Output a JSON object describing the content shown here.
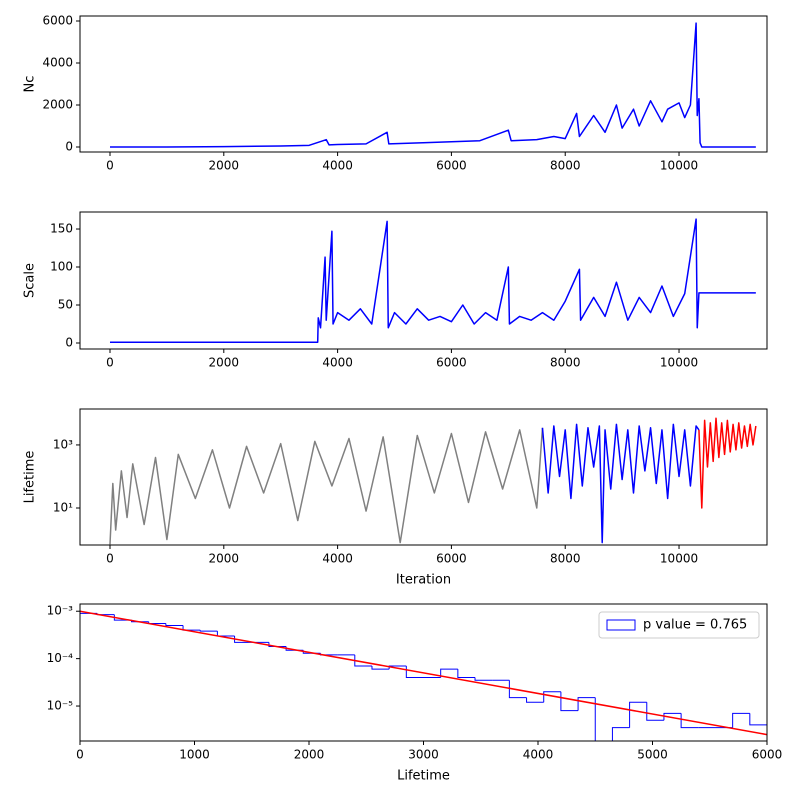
{
  "chart_data": [
    {
      "type": "line",
      "ylabel": "Nc",
      "xlim": [
        -527,
        11546
      ],
      "xticks": [
        0,
        2000,
        4000,
        6000,
        8000,
        10000
      ],
      "ylim": [
        -238,
        6238
      ],
      "yticks": [
        0,
        2000,
        4000,
        6000
      ],
      "series": [
        {
          "color": "#0000ff",
          "x": [
            0,
            1000,
            2000,
            3000,
            3500,
            3800,
            3850,
            4000,
            4500,
            4870,
            4900,
            5500,
            6000,
            6500,
            7000,
            7050,
            7500,
            7800,
            8000,
            8200,
            8250,
            8500,
            8700,
            8900,
            9000,
            9200,
            9300,
            9500,
            9700,
            9800,
            10000,
            10100,
            10200,
            10300,
            10320,
            10350,
            10370,
            10400,
            11350
          ],
          "values": [
            0,
            0,
            20,
            50,
            80,
            350,
            100,
            120,
            150,
            700,
            150,
            200,
            250,
            300,
            800,
            300,
            350,
            500,
            400,
            1600,
            500,
            1500,
            700,
            2000,
            900,
            1800,
            1000,
            2200,
            1200,
            1800,
            2100,
            1400,
            2000,
            5900,
            1500,
            2300,
            200,
            0,
            0
          ]
        }
      ]
    },
    {
      "type": "line",
      "ylabel": "Scale",
      "xlim": [
        -527,
        11546
      ],
      "xticks": [
        0,
        2000,
        4000,
        6000,
        8000,
        10000
      ],
      "ylim": [
        -7.9,
        172.4
      ],
      "yticks": [
        0,
        50,
        100,
        150
      ],
      "series": [
        {
          "color": "#0000ff",
          "x": [
            0,
            3650,
            3660,
            3700,
            3780,
            3800,
            3900,
            3920,
            4000,
            4200,
            4400,
            4600,
            4870,
            4890,
            5000,
            5200,
            5400,
            5600,
            5800,
            6000,
            6200,
            6400,
            6600,
            6800,
            7000,
            7020,
            7200,
            7400,
            7600,
            7800,
            8000,
            8250,
            8270,
            8500,
            8700,
            8900,
            9100,
            9300,
            9500,
            9700,
            9900,
            10100,
            10300,
            10320,
            10350,
            11350
          ],
          "values": [
            1,
            1,
            33,
            20,
            113,
            30,
            147,
            25,
            40,
            30,
            45,
            25,
            160,
            20,
            40,
            25,
            45,
            30,
            35,
            28,
            50,
            25,
            40,
            30,
            100,
            25,
            35,
            30,
            40,
            30,
            55,
            97,
            30,
            60,
            35,
            80,
            30,
            60,
            40,
            75,
            35,
            65,
            163,
            20,
            66,
            66
          ]
        }
      ]
    },
    {
      "type": "line",
      "ylabel": "Lifetime",
      "xlabel": "Iteration",
      "log_y": true,
      "xlim": [
        -527,
        11546
      ],
      "xticks": [
        0,
        2000,
        4000,
        6000,
        8000,
        10000
      ],
      "ylim": [
        0.67,
        13800
      ],
      "yticks": [
        {
          "value": 10,
          "label": "10¹"
        },
        {
          "value": 1000,
          "label": "10³"
        }
      ],
      "series": [
        {
          "color": "#808080",
          "x": [
            0,
            50,
            100,
            200,
            300,
            400,
            600,
            800,
            1000,
            1200,
            1500,
            1800,
            2100,
            2400,
            2700,
            3000,
            3300,
            3600,
            3900,
            4200,
            4500,
            4800,
            5100,
            5400,
            5700,
            6000,
            6300,
            6600,
            6900,
            7200,
            7500,
            7600
          ],
          "values": [
            0.7,
            60,
            2,
            150,
            5,
            250,
            3,
            400,
            1,
            500,
            20,
            700,
            10,
            900,
            30,
            1100,
            4,
            1300,
            50,
            1600,
            8,
            1800,
            0.8,
            2000,
            30,
            2300,
            15,
            2600,
            40,
            3000,
            10,
            3500
          ]
        },
        {
          "color": "#0000ff",
          "x": [
            7600,
            7700,
            7800,
            7900,
            8000,
            8100,
            8200,
            8300,
            8400,
            8500,
            8600,
            8650,
            8700,
            8800,
            8900,
            9000,
            9100,
            9200,
            9300,
            9400,
            9500,
            9600,
            9700,
            9800,
            9900,
            10000,
            10100,
            10200,
            10300,
            10350
          ],
          "values": [
            3500,
            30,
            4000,
            100,
            3000,
            20,
            4500,
            50,
            3500,
            200,
            4000,
            0.8,
            3000,
            40,
            4500,
            80,
            3000,
            30,
            4000,
            150,
            3500,
            60,
            3000,
            20,
            4500,
            100,
            3000,
            50,
            4000,
            3000
          ]
        },
        {
          "color": "#ff0000",
          "x": [
            10350,
            10400,
            10450,
            10500,
            10550,
            10600,
            10650,
            10700,
            10750,
            10800,
            10850,
            10900,
            10950,
            11000,
            11050,
            11100,
            11150,
            11200,
            11250,
            11300,
            11350
          ],
          "values": [
            3000,
            10,
            6000,
            200,
            5000,
            300,
            7000,
            400,
            5000,
            500,
            6000,
            600,
            4500,
            700,
            5000,
            800,
            4000,
            900,
            4500,
            1000,
            4000
          ]
        }
      ]
    },
    {
      "type": "histogram",
      "xlabel": "Lifetime",
      "log_y": true,
      "xlim": [
        0,
        6000
      ],
      "xticks": [
        0,
        1000,
        2000,
        3000,
        4000,
        5000,
        6000
      ],
      "ylim": [
        1.83e-06,
        0.00142
      ],
      "yticks": [
        {
          "value": 1e-05,
          "label": "10⁻⁵"
        },
        {
          "value": 0.0001,
          "label": "10⁻⁴"
        },
        {
          "value": 0.001,
          "label": "10⁻³"
        }
      ],
      "color": "#0000ff",
      "legend": "p value = 0.765",
      "legend_position": "upper right",
      "bins": [
        0,
        150,
        300,
        450,
        600,
        750,
        900,
        1050,
        1200,
        1350,
        1500,
        1650,
        1800,
        1950,
        2100,
        2250,
        2400,
        2550,
        2700,
        2850,
        3000,
        3150,
        3300,
        3450,
        3600,
        3750,
        3900,
        4050,
        4200,
        4350,
        4500,
        4650,
        4800,
        4950,
        5100,
        5250,
        5400,
        5550,
        5700,
        5850,
        6000
      ],
      "values": [
        0.0009,
        0.00085,
        0.00065,
        0.0006,
        0.00055,
        0.0005,
        0.0004,
        0.00038,
        0.0003,
        0.00022,
        0.00022,
        0.00018,
        0.00015,
        0.00013,
        0.00012,
        0.00012,
        7e-05,
        6e-05,
        7e-05,
        4e-05,
        4e-05,
        6e-05,
        4e-05,
        3.5e-05,
        3.5e-05,
        1.5e-05,
        1.2e-05,
        2e-05,
        8e-06,
        1.5e-05,
        0,
        3.5e-06,
        1.2e-05,
        5e-06,
        7e-06,
        3.5e-06,
        3.5e-06,
        3.5e-06,
        7e-06,
        4e-06
      ],
      "fit": {
        "color": "#ff0000",
        "x": [
          0,
          6000
        ],
        "values": [
          0.001,
          2.5e-06
        ]
      }
    }
  ]
}
